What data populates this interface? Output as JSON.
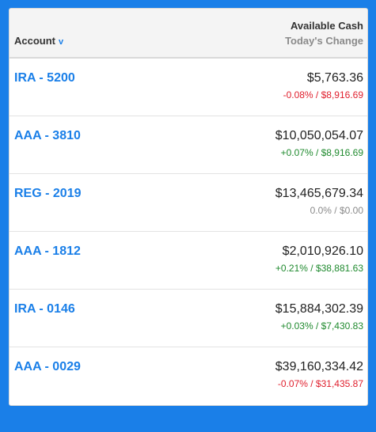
{
  "header": {
    "account_label": "Account",
    "sort_icon": "chevron-down-icon",
    "available_cash_label": "Available Cash",
    "todays_change_label": "Today's Change"
  },
  "accounts": [
    {
      "name": "IRA - 5200",
      "cash": "$5,763.36",
      "change": "-0.08% / $8,916.69",
      "trend": "neg"
    },
    {
      "name": "AAA - 3810",
      "cash": "$10,050,054.07",
      "change": "+0.07% / $8,916.69",
      "trend": "pos"
    },
    {
      "name": "REG - 2019",
      "cash": "$13,465,679.34",
      "change": "0.0% / $0.00",
      "trend": "neu"
    },
    {
      "name": "AAA - 1812",
      "cash": "$2,010,926.10",
      "change": "+0.21% / $38,881.63",
      "trend": "pos"
    },
    {
      "name": "IRA - 0146",
      "cash": "$15,884,302.39",
      "change": "+0.03% / $7,430.83",
      "trend": "pos"
    },
    {
      "name": "AAA - 0029",
      "cash": "$39,160,334.42",
      "change": "-0.07% / $31,435.87",
      "trend": "neg"
    }
  ],
  "colors": {
    "background": "#1a7fe8",
    "link": "#1a7fe8",
    "negative": "#e0202e",
    "positive": "#1f8a2e",
    "neutral": "#8a8a8a"
  }
}
